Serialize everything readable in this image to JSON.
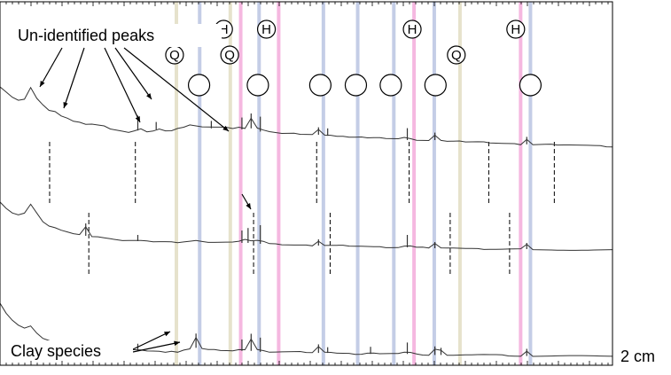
{
  "chart_data": {
    "type": "line",
    "title": "",
    "xlabel": "",
    "ylabel": "",
    "annotations": {
      "unidentified": "Un-identified peaks",
      "clay": "Clay species",
      "side_label": "2 cm"
    },
    "markers": [
      {
        "symbol": "H",
        "x": 0.365
      },
      {
        "symbol": "H",
        "x": 0.435
      },
      {
        "symbol": "H",
        "x": 0.673
      },
      {
        "symbol": "H",
        "x": 0.842
      },
      {
        "symbol": "Q",
        "x": 0.285
      },
      {
        "symbol": "Q",
        "x": 0.375
      },
      {
        "symbol": "Q",
        "x": 0.745
      },
      {
        "symbol": "",
        "x": 0.325
      },
      {
        "symbol": "",
        "x": 0.421
      },
      {
        "symbol": "",
        "x": 0.523
      },
      {
        "symbol": "",
        "x": 0.581
      },
      {
        "symbol": "",
        "x": 0.638
      },
      {
        "symbol": "",
        "x": 0.711
      },
      {
        "symbol": "",
        "x": 0.866
      }
    ],
    "reference_lines": [
      {
        "x": 0.288,
        "type": "quartz",
        "color": "#e6e2cc"
      },
      {
        "x": 0.326,
        "type": "blue",
        "color": "#c4cde6"
      },
      {
        "x": 0.376,
        "type": "quartz",
        "color": "#e6e2cc"
      },
      {
        "x": 0.393,
        "type": "hematite",
        "color": "#f5b8e0"
      },
      {
        "x": 0.423,
        "type": "blue",
        "color": "#c4cde6"
      },
      {
        "x": 0.455,
        "type": "hematite",
        "color": "#f5b8e0"
      },
      {
        "x": 0.528,
        "type": "blue",
        "color": "#c4cde6"
      },
      {
        "x": 0.584,
        "type": "blue",
        "color": "#c4cde6"
      },
      {
        "x": 0.643,
        "type": "blue",
        "color": "#c4cde6"
      },
      {
        "x": 0.676,
        "type": "hematite",
        "color": "#f5b8e0"
      },
      {
        "x": 0.709,
        "type": "blue",
        "color": "#c4cde6"
      },
      {
        "x": 0.751,
        "type": "quartz",
        "color": "#e6e2cc"
      },
      {
        "x": 0.85,
        "type": "hematite",
        "color": "#f5b8e0"
      },
      {
        "x": 0.866,
        "type": "blue",
        "color": "#c4cde6"
      }
    ],
    "dashed_markers": [
      0.081,
      0.145,
      0.221,
      0.414,
      0.517,
      0.539,
      0.668,
      0.735,
      0.798,
      0.832,
      0.905
    ],
    "series": [
      {
        "values": [
          0.85,
          0.8,
          0.75,
          0.72,
          0.73,
          0.84,
          0.74,
          0.68,
          0.63,
          0.62,
          0.58,
          0.56,
          0.53,
          0.52,
          0.5,
          0.5,
          0.49,
          0.48,
          0.45,
          0.44,
          0.43,
          0.42,
          0.42,
          0.44,
          0.43,
          0.43,
          0.45,
          0.44,
          0.44,
          0.46,
          0.47,
          0.49,
          0.48,
          0.47,
          0.46,
          0.46,
          0.47,
          0.47,
          0.46,
          0.46,
          0.45,
          0.46,
          0.45,
          0.43,
          0.43,
          0.42,
          0.41,
          0.41,
          0.41,
          0.4,
          0.4,
          0.4,
          0.4,
          0.39,
          0.39,
          0.39,
          0.39,
          0.38,
          0.38,
          0.38,
          0.37,
          0.37,
          0.37,
          0.36,
          0.36,
          0.36,
          0.36,
          0.35,
          0.35,
          0.35,
          0.35,
          0.35,
          0.35,
          0.34,
          0.34,
          0.34,
          0.33,
          0.33,
          0.33,
          0.33,
          0.32,
          0.32,
          0.32,
          0.32,
          0.32,
          0.31,
          0.31,
          0.31,
          0.31,
          0.31,
          0.31,
          0.3,
          0.3,
          0.3,
          0.3,
          0.3,
          0.3,
          0.3,
          0.3,
          0.29,
          0.29
        ],
        "peaks": [
          [
            0.225,
            0.1
          ],
          [
            0.255,
            0.05
          ],
          [
            0.345,
            0.05
          ],
          [
            0.395,
            0.08
          ],
          [
            0.41,
            0.1
          ],
          [
            0.425,
            0.1
          ],
          [
            0.52,
            0.05
          ],
          [
            0.535,
            0.05
          ],
          [
            0.665,
            0.08
          ],
          [
            0.71,
            0.05
          ],
          [
            0.86,
            0.05
          ]
        ]
      },
      {
        "values": [
          0.72,
          0.65,
          0.6,
          0.58,
          0.6,
          0.7,
          0.6,
          0.5,
          0.45,
          0.43,
          0.4,
          0.38,
          0.36,
          0.35,
          0.34,
          0.33,
          0.33,
          0.32,
          0.31,
          0.3,
          0.29,
          0.29,
          0.28,
          0.28,
          0.28,
          0.27,
          0.27,
          0.27,
          0.27,
          0.26,
          0.27,
          0.28,
          0.29,
          0.28,
          0.27,
          0.27,
          0.27,
          0.27,
          0.27,
          0.26,
          0.26,
          0.26,
          0.26,
          0.25,
          0.25,
          0.25,
          0.24,
          0.24,
          0.24,
          0.24,
          0.24,
          0.23,
          0.23,
          0.23,
          0.23,
          0.23,
          0.23,
          0.22,
          0.22,
          0.22,
          0.22,
          0.22,
          0.22,
          0.21,
          0.21,
          0.21,
          0.21,
          0.21,
          0.21,
          0.21,
          0.2,
          0.2,
          0.2,
          0.2,
          0.2,
          0.2,
          0.2,
          0.2,
          0.2,
          0.19,
          0.19,
          0.19,
          0.19,
          0.19,
          0.19,
          0.19,
          0.19,
          0.18,
          0.18,
          0.18,
          0.18,
          0.18,
          0.18,
          0.18,
          0.18,
          0.18,
          0.18,
          0.18,
          0.18,
          0.18,
          0.18
        ],
        "peaks": [
          [
            0.14,
            0.1
          ],
          [
            0.225,
            0.05
          ],
          [
            0.395,
            0.1
          ],
          [
            0.405,
            0.12
          ],
          [
            0.425,
            0.15
          ],
          [
            0.52,
            0.05
          ],
          [
            0.665,
            0.1
          ],
          [
            0.71,
            0.05
          ],
          [
            0.86,
            0.05
          ]
        ]
      },
      {
        "values": [
          0.55,
          0.45,
          0.38,
          0.33,
          0.3,
          0.32,
          0.25,
          0.2,
          0.18,
          0.16,
          0.14,
          0.13,
          0.12,
          0.12,
          0.11,
          0.1,
          0.1,
          0.1,
          0.09,
          0.09,
          0.09,
          0.09,
          0.08,
          0.08,
          0.08,
          0.08,
          0.08,
          0.07,
          0.08,
          0.07,
          0.09,
          0.1,
          0.11,
          0.1,
          0.09,
          0.09,
          0.08,
          0.08,
          0.08,
          0.08,
          0.08,
          0.08,
          0.08,
          0.07,
          0.07,
          0.07,
          0.07,
          0.07,
          0.07,
          0.07,
          0.06,
          0.06,
          0.06,
          0.06,
          0.06,
          0.06,
          0.06,
          0.06,
          0.05,
          0.05,
          0.05,
          0.05,
          0.05,
          0.05,
          0.05,
          0.05,
          0.05,
          0.05,
          0.05,
          0.04,
          0.04,
          0.04,
          0.04,
          0.04,
          0.04,
          0.04,
          0.04,
          0.04,
          0.04,
          0.04,
          0.04,
          0.04,
          0.04,
          0.03,
          0.03,
          0.03,
          0.03,
          0.03,
          0.03,
          0.03,
          0.03,
          0.03,
          0.03,
          0.03,
          0.03,
          0.03,
          0.03,
          0.03,
          0.03,
          0.03,
          0.03
        ],
        "peaks": [
          [
            0.14,
            0.05
          ],
          [
            0.225,
            0.05
          ],
          [
            0.32,
            0.1
          ],
          [
            0.395,
            0.08
          ],
          [
            0.41,
            0.12
          ],
          [
            0.425,
            0.1
          ],
          [
            0.52,
            0.06
          ],
          [
            0.535,
            0.04
          ],
          [
            0.605,
            0.05
          ],
          [
            0.665,
            0.08
          ],
          [
            0.71,
            0.06
          ],
          [
            0.72,
            0.05
          ],
          [
            0.86,
            0.05
          ]
        ]
      }
    ]
  }
}
